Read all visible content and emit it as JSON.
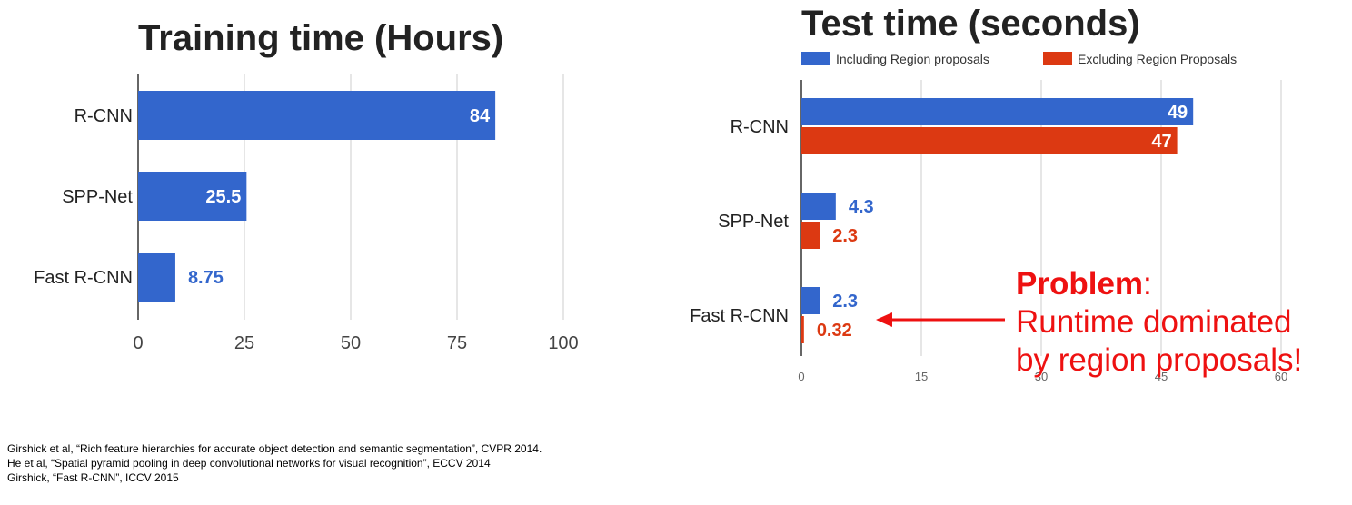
{
  "chart_data": [
    {
      "type": "bar",
      "orientation": "horizontal",
      "title": "Training time (Hours)",
      "categories": [
        "R-CNN",
        "SPP-Net",
        "Fast R-CNN"
      ],
      "values": [
        84,
        25.5,
        8.75
      ],
      "value_labels": [
        "84",
        "25.5",
        "8.75"
      ],
      "xlim": [
        0,
        100
      ],
      "xticks": [
        "0",
        "25",
        "50",
        "75",
        "100"
      ],
      "grid": true,
      "colors": {
        "bar": "#3366cc",
        "label_inside": "#ffffff",
        "label_outside": "#3366cc",
        "grid": "#cccccc"
      }
    },
    {
      "type": "bar",
      "orientation": "horizontal",
      "title": "Test time (seconds)",
      "categories": [
        "R-CNN",
        "SPP-Net",
        "Fast R-CNN"
      ],
      "series": [
        {
          "name": "Including Region proposals",
          "values": [
            49,
            4.3,
            2.3
          ],
          "value_labels": [
            "49",
            "4.3",
            "2.3"
          ],
          "color": "#3366cc"
        },
        {
          "name": "Excluding Region Proposals",
          "values": [
            47,
            2.3,
            0.32
          ],
          "value_labels": [
            "47",
            "2.3",
            "0.32"
          ],
          "color": "#dc3912"
        }
      ],
      "xlim": [
        0,
        60
      ],
      "xticks": [
        "0",
        "15",
        "30",
        "45",
        "60"
      ],
      "grid": true,
      "legend_position": "top"
    }
  ],
  "annotation": {
    "problem_word": "Problem",
    "problem_colon": ":",
    "line1": "Runtime dominated",
    "line2": "by region proposals!",
    "color": "#ee1111"
  },
  "citations": [
    "Girshick et al, “Rich feature hierarchies for accurate object detection and semantic segmentation”, CVPR 2014.",
    "He et al, “Spatial pyramid pooling in deep convolutional networks for visual recognition”, ECCV 2014",
    "Girshick, “Fast R-CNN”, ICCV 2015"
  ]
}
